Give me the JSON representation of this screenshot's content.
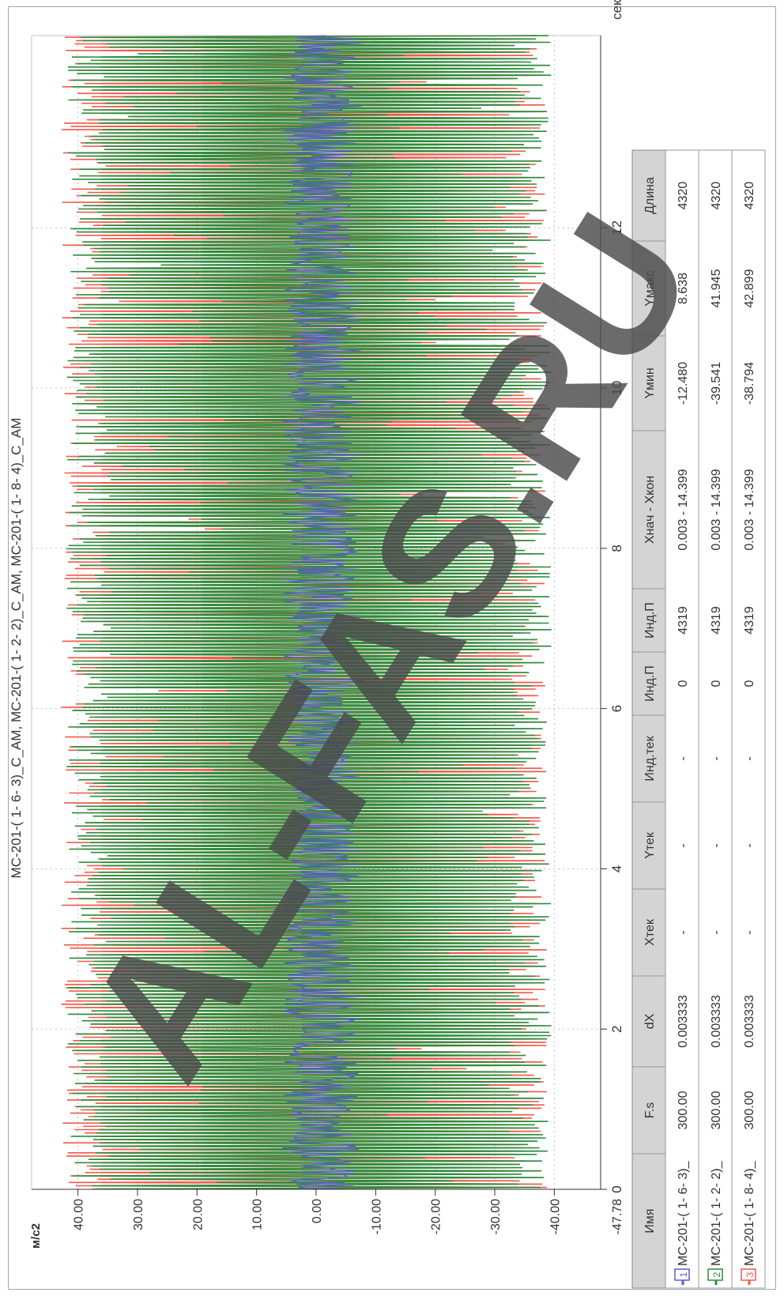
{
  "chart_data": {
    "type": "line",
    "title": "МС-201-( 1- 6- 3)_С_АМ, МС-201-( 1- 2- 2)_С_АМ, МС-201-( 1- 8- 4)_С_АМ",
    "ylabel": "м/с2",
    "xunit": "сек.",
    "x_ticks": [
      "0",
      "2",
      "4",
      "6",
      "8",
      "10",
      "12"
    ],
    "y_ticks": [
      "40.00",
      "30.00",
      "20.00",
      "10.00",
      "0.00",
      "-10.00",
      "-20.00",
      "-30.00",
      "-40.00"
    ],
    "y_min_label": "-47.78",
    "xlim": [
      0,
      14.4
    ],
    "ylim": [
      -47.78,
      47.78
    ],
    "grid": true,
    "series": [
      {
        "index": "1",
        "name": "МС-201-( 1- 6- 3)_",
        "color": "#5b5fc7",
        "x_range": [
          0.003,
          14.399
        ],
        "y_range": [
          -12.48,
          8.638
        ]
      },
      {
        "index": "2",
        "name": "МС-201-( 1- 2- 2)_",
        "color": "#2e8b3c",
        "x_range": [
          0.003,
          14.399
        ],
        "y_range": [
          -39.541,
          41.945
        ]
      },
      {
        "index": "3",
        "name": "МС-201-( 1- 8- 4)_",
        "color": "#f25a4a",
        "x_range": [
          0.003,
          14.399
        ],
        "y_range": [
          -38.794,
          42.899
        ]
      }
    ]
  },
  "table": {
    "headers": [
      "Имя",
      "F.s",
      "dX",
      "Xтек",
      "Yтек",
      "Инд.тек",
      "Инд.П",
      "Инд.П",
      "Хнач - Хкон",
      "Yмин",
      "Yмакс",
      "Длина"
    ],
    "rows": [
      [
        "МС-201-( 1- 6- 3)_",
        "300.00",
        "0.003333",
        "-",
        "-",
        "-",
        "0",
        "4319",
        "0.003 - 14.399",
        "-12.480",
        "8.638",
        "4320"
      ],
      [
        "МС-201-( 1- 2- 2)_",
        "300.00",
        "0.003333",
        "-",
        "-",
        "-",
        "0",
        "4319",
        "0.003 - 14.399",
        "-39.541",
        "41.945",
        "4320"
      ],
      [
        "МС-201-( 1- 8- 4)_",
        "300.00",
        "0.003333",
        "-",
        "-",
        "-",
        "0",
        "4319",
        "0.003 - 14.399",
        "-38.794",
        "42.899",
        "4320"
      ]
    ]
  },
  "watermark": "AL-FAS.RU"
}
